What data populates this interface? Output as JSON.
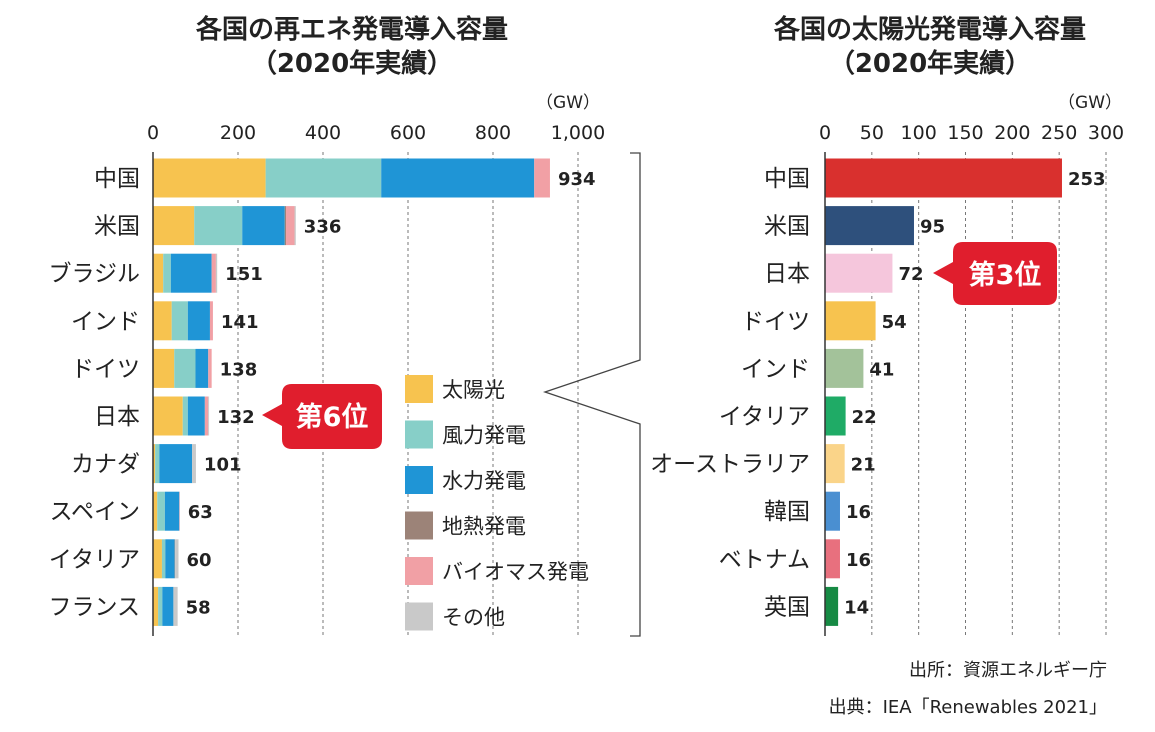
{
  "chart_data": [
    {
      "type": "bar",
      "orientation": "horizontal",
      "stacked": true,
      "title": "各国の再エネ発電導入容量",
      "subtitle": "（2020年実績）",
      "unit": "（GW）",
      "xlim": [
        0,
        1000
      ],
      "xticks": [
        "0",
        "200",
        "400",
        "600",
        "800",
        "1,000"
      ],
      "grid": true,
      "categories": [
        "中国",
        "米国",
        "ブラジル",
        "インド",
        "ドイツ",
        "日本",
        "カナダ",
        "スペイン",
        "イタリア",
        "フランス"
      ],
      "totals": [
        934,
        336,
        151,
        141,
        138,
        132,
        101,
        63,
        60,
        58
      ],
      "series": [
        {
          "name": "太陽光",
          "values": [
            265,
            97,
            24,
            44,
            50,
            70,
            5,
            10,
            21,
            12
          ]
        },
        {
          "name": "風力発電",
          "values": [
            272,
            113,
            18,
            38,
            50,
            12,
            10,
            18,
            8,
            10
          ]
        },
        {
          "name": "水力発電",
          "values": [
            360,
            100,
            96,
            52,
            30,
            40,
            77,
            34,
            22,
            26
          ]
        },
        {
          "name": "地熱発電",
          "values": [
            0,
            3,
            0,
            0,
            0,
            0,
            0,
            0,
            1,
            0
          ]
        },
        {
          "name": "バイオマス発電",
          "values": [
            37,
            20,
            10,
            7,
            8,
            8,
            0,
            1,
            0,
            0
          ]
        },
        {
          "name": "その他",
          "values": [
            0,
            3,
            3,
            0,
            0,
            2,
            9,
            0,
            8,
            10
          ]
        }
      ],
      "legend_position": "center-right",
      "highlight": {
        "category": "日本",
        "label": "第6位"
      }
    },
    {
      "type": "bar",
      "orientation": "horizontal",
      "title": "各国の太陽光発電導入容量",
      "subtitle": "（2020年実績）",
      "unit": "（GW）",
      "xlim": [
        0,
        300
      ],
      "xticks": [
        "0",
        "50",
        "100",
        "150",
        "200",
        "250",
        "300"
      ],
      "grid": true,
      "categories": [
        "中国",
        "米国",
        "日本",
        "ドイツ",
        "インド",
        "イタリア",
        "オーストラリア",
        "韓国",
        "ベトナム",
        "英国"
      ],
      "values": [
        253,
        95,
        72,
        54,
        41,
        22,
        21,
        16,
        16,
        14
      ],
      "colors": [
        "#d9302e",
        "#2e507c",
        "#f5c6dc",
        "#f7c34f",
        "#a3c29a",
        "#1fab66",
        "#fad489",
        "#4a8fd1",
        "#e8707e",
        "#168a44"
      ],
      "highlight": {
        "category": "日本",
        "label": "第3位"
      }
    }
  ],
  "series_colors": [
    "#f7c34f",
    "#87cfc8",
    "#1f95d6",
    "#9c8378",
    "#f1a0a5",
    "#c9c9c9"
  ],
  "badge_color": "#e01e2d",
  "sources": [
    "出所：資源エネルギー庁",
    "出典：IEA「Renewables 2021」"
  ]
}
